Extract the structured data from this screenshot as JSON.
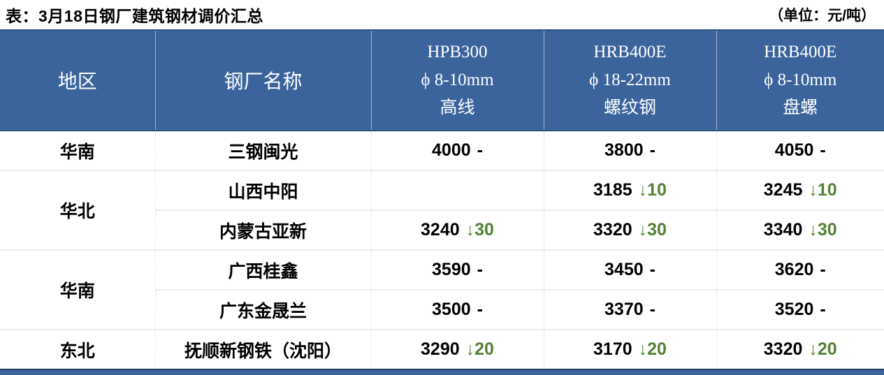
{
  "title": "表：3月18日钢厂建筑钢材调价汇总",
  "unit_label": "（单位：元/吨）",
  "colors": {
    "header_bg": "#3A649B",
    "accent_dark": "#1F3B66",
    "down_green": "#538135",
    "row_divider": "#E8EDF4"
  },
  "table": {
    "headers": {
      "region": "地区",
      "mill": "钢厂名称",
      "col3": {
        "line1": "HPB300",
        "line2": "ϕ 8-10mm",
        "line3": "高线"
      },
      "col4": {
        "line1": "HRB400E",
        "line2": "ϕ 18-22mm",
        "line3": "螺纹钢"
      },
      "col5": {
        "line1": "HRB400E",
        "line2": "ϕ 8-10mm",
        "line3": "盘螺"
      }
    },
    "rows": [
      {
        "region": "华南",
        "mill": "三钢闽光",
        "cells": [
          {
            "price": "4000",
            "delta": "-",
            "trend": "flat"
          },
          {
            "price": "3800",
            "delta": "-",
            "trend": "flat"
          },
          {
            "price": "4050",
            "delta": "-",
            "trend": "flat"
          }
        ]
      },
      {
        "region": "华北",
        "mill": "山西中阳",
        "cells": [
          {
            "price": "",
            "delta": "",
            "trend": "none"
          },
          {
            "price": "3185",
            "delta": "↓10",
            "trend": "down"
          },
          {
            "price": "3245",
            "delta": "↓10",
            "trend": "down"
          }
        ]
      },
      {
        "mill": "内蒙古亚新",
        "cells": [
          {
            "price": "3240",
            "delta": "↓30",
            "trend": "down"
          },
          {
            "price": "3320",
            "delta": "↓30",
            "trend": "down"
          },
          {
            "price": "3340",
            "delta": "↓30",
            "trend": "down"
          }
        ]
      },
      {
        "region": "华南",
        "mill": "广西桂鑫",
        "cells": [
          {
            "price": "3590",
            "delta": "-",
            "trend": "flat"
          },
          {
            "price": "3450",
            "delta": "-",
            "trend": "flat"
          },
          {
            "price": "3620",
            "delta": "-",
            "trend": "flat"
          }
        ]
      },
      {
        "mill": "广东金晟兰",
        "cells": [
          {
            "price": "3500",
            "delta": "-",
            "trend": "flat"
          },
          {
            "price": "3370",
            "delta": "-",
            "trend": "flat"
          },
          {
            "price": "3520",
            "delta": "-",
            "trend": "flat"
          }
        ]
      },
      {
        "region": "东北",
        "mill": "抚顺新钢铁（沈阳）",
        "cells": [
          {
            "price": "3290",
            "delta": "↓20",
            "trend": "down"
          },
          {
            "price": "3170",
            "delta": "↓20",
            "trend": "down"
          },
          {
            "price": "3320",
            "delta": "↓20",
            "trend": "down"
          }
        ]
      }
    ]
  }
}
